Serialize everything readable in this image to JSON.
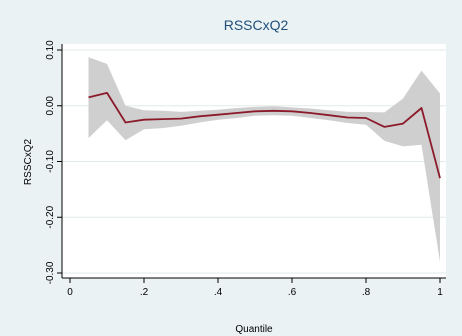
{
  "chart_data": {
    "type": "line",
    "title": "RSSCxQ2",
    "xlabel": "Quantile",
    "ylabel": "RSSCxQ2",
    "xlim": [
      0,
      1
    ],
    "ylim": [
      -0.3,
      0.1
    ],
    "x_ticks": [
      0,
      0.2,
      0.4,
      0.6,
      0.8,
      1
    ],
    "x_tick_labels": [
      "0",
      ".2",
      ".4",
      ".6",
      ".8",
      "1"
    ],
    "y_ticks": [
      0.1,
      0.0,
      -0.1,
      -0.2,
      -0.3
    ],
    "y_tick_labels": [
      "0.10",
      "0.00",
      "-0.10",
      "-0.20",
      "-0.30"
    ],
    "grid": true,
    "x": [
      0.05,
      0.1,
      0.15,
      0.2,
      0.25,
      0.3,
      0.35,
      0.4,
      0.45,
      0.5,
      0.55,
      0.6,
      0.65,
      0.7,
      0.75,
      0.8,
      0.85,
      0.9,
      0.95,
      1.0
    ],
    "series": [
      {
        "role": "estimate",
        "values": [
          0.015,
          0.023,
          -0.03,
          -0.025,
          -0.024,
          -0.023,
          -0.019,
          -0.016,
          -0.013,
          -0.01,
          -0.009,
          -0.01,
          -0.013,
          -0.017,
          -0.021,
          -0.022,
          -0.038,
          -0.032,
          -0.004,
          -0.13
        ]
      },
      {
        "role": "ci_upper",
        "values": [
          0.087,
          0.075,
          0.0,
          -0.008,
          -0.009,
          -0.011,
          -0.009,
          -0.007,
          -0.004,
          -0.002,
          -0.001,
          -0.003,
          -0.005,
          -0.008,
          -0.011,
          -0.011,
          -0.012,
          0.013,
          0.063,
          0.022
        ]
      },
      {
        "role": "ci_lower",
        "values": [
          -0.058,
          -0.026,
          -0.062,
          -0.042,
          -0.04,
          -0.036,
          -0.03,
          -0.025,
          -0.022,
          -0.018,
          -0.017,
          -0.018,
          -0.022,
          -0.026,
          -0.031,
          -0.034,
          -0.063,
          -0.073,
          -0.07,
          -0.28
        ]
      }
    ],
    "colors": {
      "background": "#eaf2f3",
      "plot_background": "#ffffff",
      "line": "#8b1a2b",
      "band": "#cfcfcf",
      "grid": "#e3eaeb",
      "title": "#1f4e79"
    }
  }
}
